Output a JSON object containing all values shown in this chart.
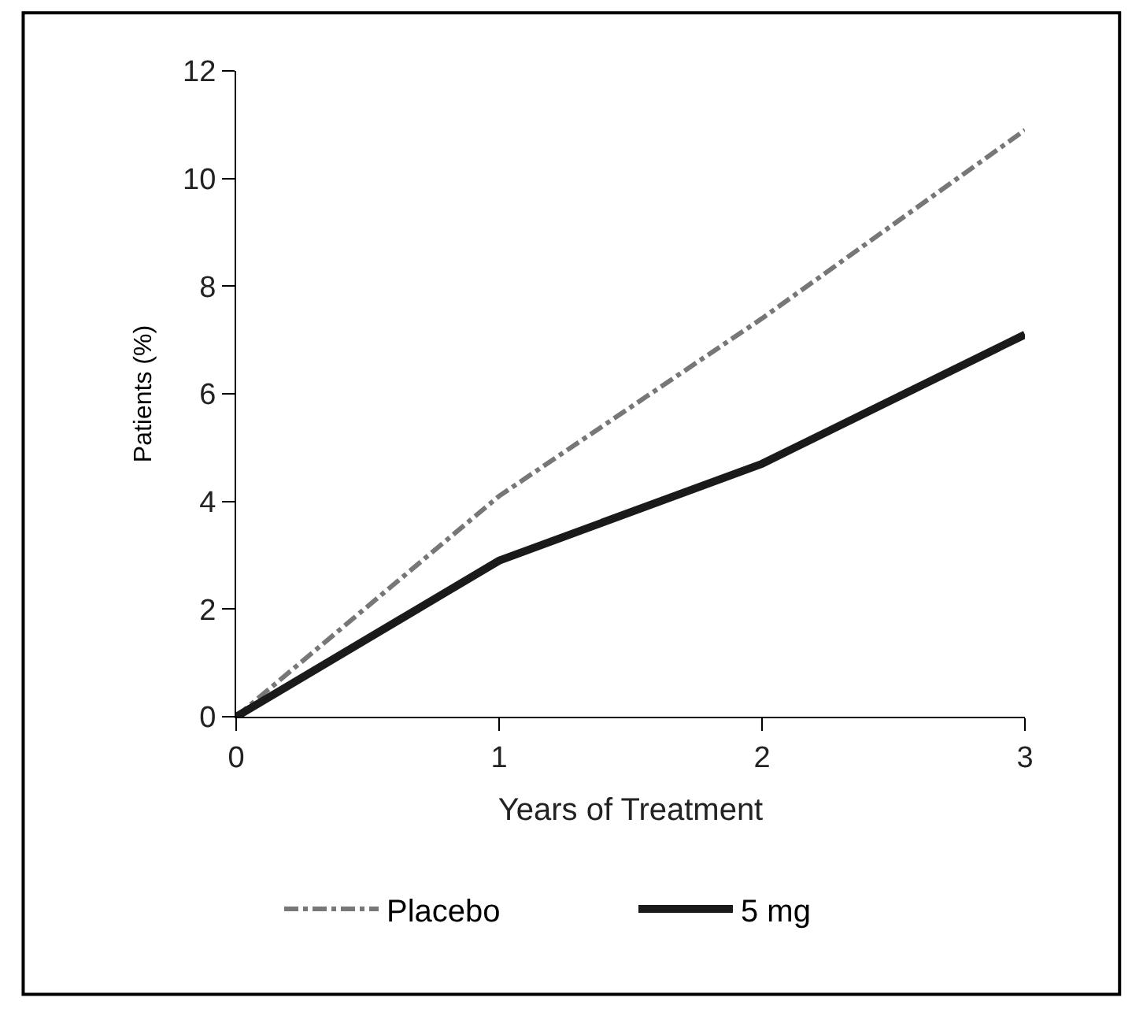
{
  "chart_data": {
    "type": "line",
    "xlabel": "Years of Treatment",
    "ylabel": "Patients (%)",
    "x": [
      0,
      1,
      2,
      3
    ],
    "series": [
      {
        "name": "Placebo",
        "color": "#777777",
        "line_style": "dashed",
        "values": [
          0,
          4.1,
          7.4,
          10.9
        ]
      },
      {
        "name": "5 mg",
        "color": "#1a1a1a",
        "line_style": "solid",
        "values": [
          0,
          2.9,
          4.7,
          7.1
        ]
      }
    ],
    "xlim": [
      0,
      3
    ],
    "xticks": [
      0,
      1,
      2,
      3
    ],
    "ylim": [
      0,
      12
    ],
    "yticks": [
      0,
      2,
      4,
      6,
      8,
      10,
      12
    ],
    "legend": "bottom",
    "marker": "none"
  }
}
